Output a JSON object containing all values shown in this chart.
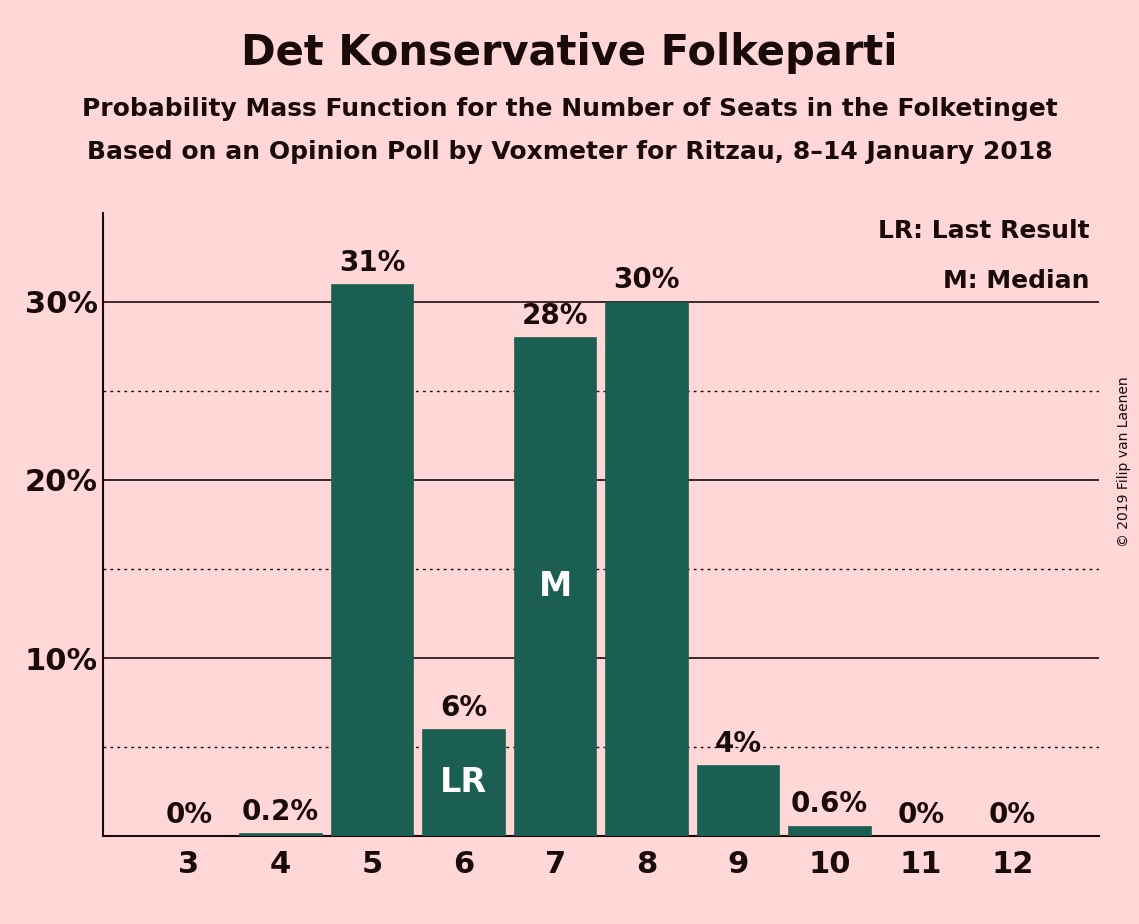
{
  "title": "Det Konservative Folkeparti",
  "subtitle1": "Probability Mass Function for the Number of Seats in the Folketinget",
  "subtitle2": "Based on an Opinion Poll by Voxmeter for Ritzau, 8–14 January 2018",
  "copyright": "© 2019 Filip van Laenen",
  "legend_lr": "LR: Last Result",
  "legend_m": "M: Median",
  "categories": [
    3,
    4,
    5,
    6,
    7,
    8,
    9,
    10,
    11,
    12
  ],
  "values": [
    0.0,
    0.2,
    31.0,
    6.0,
    28.0,
    30.0,
    4.0,
    0.6,
    0.0,
    0.0
  ],
  "bar_color": "#1b5e52",
  "bar_edge_color": "#1b5e52",
  "background_color": "#ffd7d7",
  "text_color": "#1a0a0a",
  "label_color_outside": "#1a0a0a",
  "label_color_inside": "#ffffff",
  "lr_bar": 6,
  "median_bar": 7,
  "ylim": [
    0,
    35
  ],
  "yticks": [
    10,
    20,
    30
  ],
  "yticks_dotted": [
    5,
    15,
    25
  ],
  "title_fontsize": 30,
  "subtitle_fontsize": 18,
  "axis_tick_fontsize": 22,
  "bar_label_fontsize": 20,
  "inside_label_fontsize": 24,
  "legend_fontsize": 18,
  "copyright_fontsize": 10
}
